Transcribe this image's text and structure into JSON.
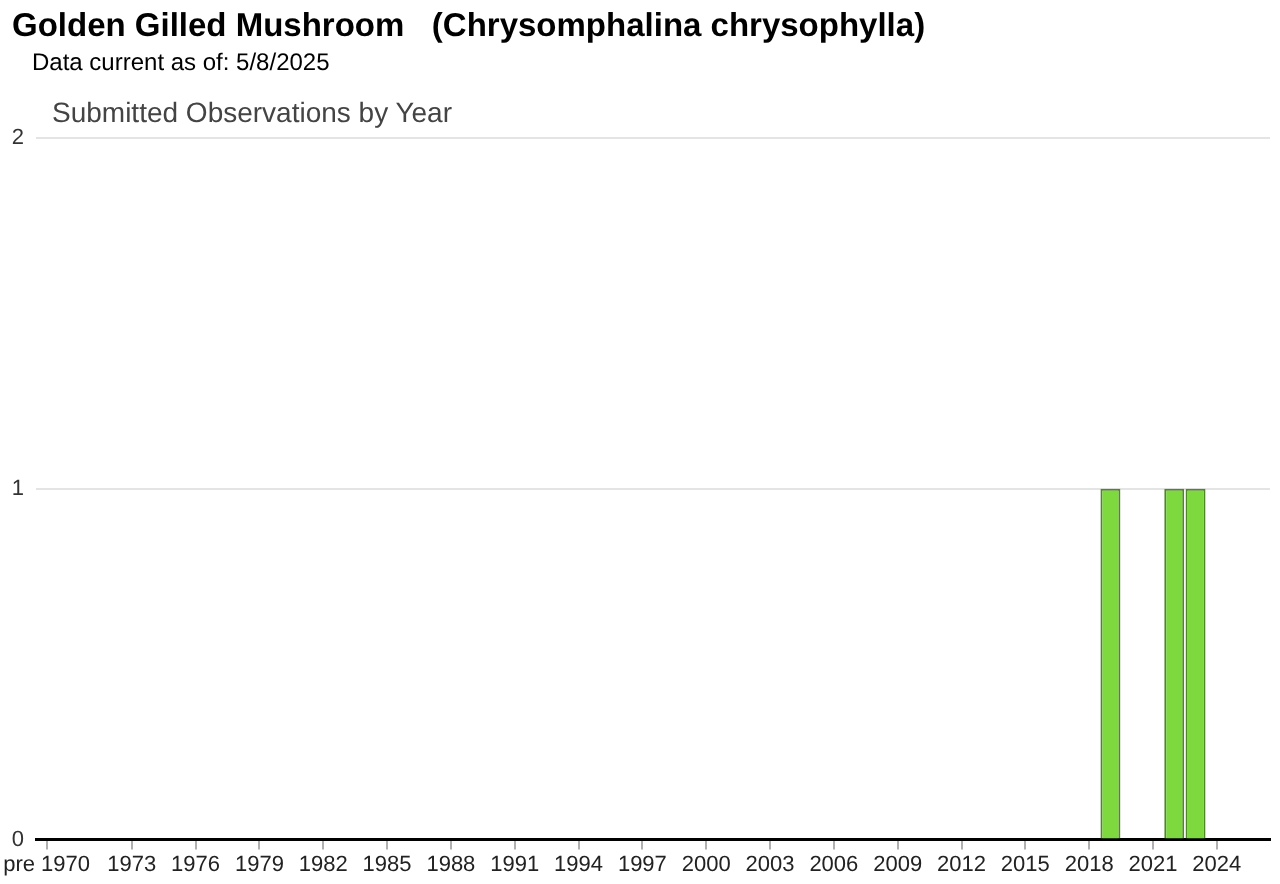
{
  "chart_data": {
    "type": "bar",
    "title": "Golden Gilled Mushroom   (Chrysomphalina chrysophylla)",
    "subtitle": "Submitted Observations by Year",
    "annotations": [
      "Data current as of: 5/8/2025"
    ],
    "categories": [
      "pre 1970",
      null,
      null,
      null,
      "1973",
      null,
      null,
      "1976",
      null,
      null,
      "1979",
      null,
      null,
      "1982",
      null,
      null,
      "1985",
      null,
      null,
      "1988",
      null,
      null,
      "1991",
      null,
      null,
      "1994",
      null,
      null,
      "1997",
      null,
      null,
      "2000",
      null,
      null,
      "2003",
      null,
      null,
      "2006",
      null,
      null,
      "2009",
      null,
      null,
      "2012",
      null,
      null,
      "2015",
      null,
      null,
      "2018",
      null,
      null,
      "2021",
      null,
      null,
      "2024",
      null,
      null
    ],
    "values": [
      0,
      0,
      0,
      0,
      0,
      0,
      0,
      0,
      0,
      0,
      0,
      0,
      0,
      0,
      0,
      0,
      0,
      0,
      0,
      0,
      0,
      0,
      0,
      0,
      0,
      0,
      0,
      0,
      0,
      0,
      0,
      0,
      0,
      0,
      0,
      0,
      0,
      0,
      0,
      0,
      0,
      0,
      0,
      0,
      0,
      0,
      0,
      0,
      0,
      0,
      1,
      0,
      0,
      1,
      1,
      0,
      0,
      0
    ],
    "color": "#7dd93e",
    "ylim": [
      0,
      2
    ],
    "yticks": [
      0,
      1,
      2
    ],
    "grid": "y"
  }
}
